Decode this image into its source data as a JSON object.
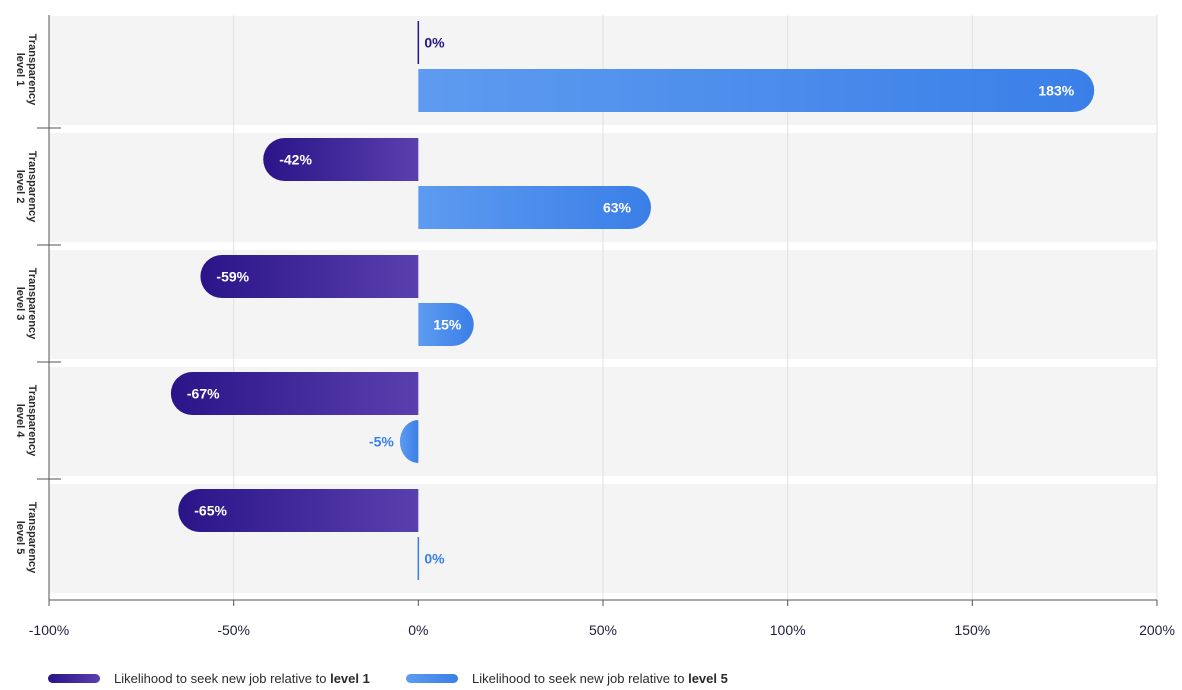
{
  "chart_data": {
    "type": "bar",
    "orientation": "horizontal",
    "categories": [
      "Transparency level 1",
      "Transparency level 2",
      "Transparency level 3",
      "Transparency level 4",
      "Transparency level 5"
    ],
    "series": [
      {
        "name": "Likelihood to seek new job relative to level 1",
        "legend_prefix": "Likelihood to seek new job relative to ",
        "legend_bold": "level 1",
        "values": [
          0,
          -42,
          -59,
          -67,
          -65
        ],
        "labels": [
          "0%",
          "-42%",
          "-59%",
          "-67%",
          "-65%"
        ],
        "color_start": "#2a1488",
        "color_end": "#5a3fae"
      },
      {
        "name": "Likelihood to seek new job relative to level 5",
        "legend_prefix": "Likelihood to seek new job relative to ",
        "legend_bold": "level 5",
        "values": [
          183,
          63,
          15,
          -5,
          0
        ],
        "labels": [
          "183%",
          "63%",
          "15%",
          "-5%",
          "0%"
        ],
        "color_start": "#5e9bf0",
        "color_end": "#3a7fe8"
      }
    ],
    "xlim": [
      -100,
      200
    ],
    "xticks": [
      -100,
      -50,
      0,
      50,
      100,
      150,
      200
    ],
    "xtick_labels": [
      "-100%",
      "-50%",
      "0%",
      "50%",
      "100%",
      "150%",
      "200%"
    ],
    "grid": true,
    "legend_position": "bottom-left",
    "title": "",
    "xlabel": "",
    "ylabel": ""
  }
}
